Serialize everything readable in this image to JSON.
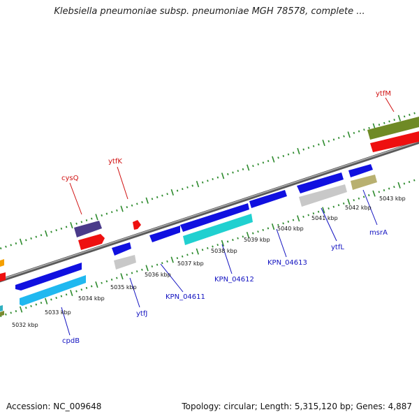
{
  "title": "Klebsiella pneumoniae subsp. pneumoniae MGH 78578, complete ...",
  "footer": {
    "accession": "Accession: NC_009648",
    "summary": "Topology: circular; Length: 5,315,120 bp; Genes: 4,887"
  },
  "colors": {
    "backbone": "#8a8a8a",
    "tick": "#2e8b2e",
    "label_top": "#d01010",
    "label_bottom": "#1010c0"
  },
  "scale_labels": [
    "5032 kbp",
    "5033 kbp",
    "5034 kbp",
    "5035 kbp",
    "5036 kbp",
    "5037 kbp",
    "5038 kbp",
    "5039 kbp",
    "5040 kbp",
    "5041 kbp",
    "5042 kbp",
    "5043 kbp"
  ],
  "gene_labels": {
    "top": [
      "cysQ",
      "ytfK",
      "ytfM"
    ],
    "bottom": [
      "cpdB",
      "ytfJ",
      "KPN_04611",
      "KPN_04612",
      "KPN_04613",
      "ytfL",
      "msrA"
    ]
  }
}
